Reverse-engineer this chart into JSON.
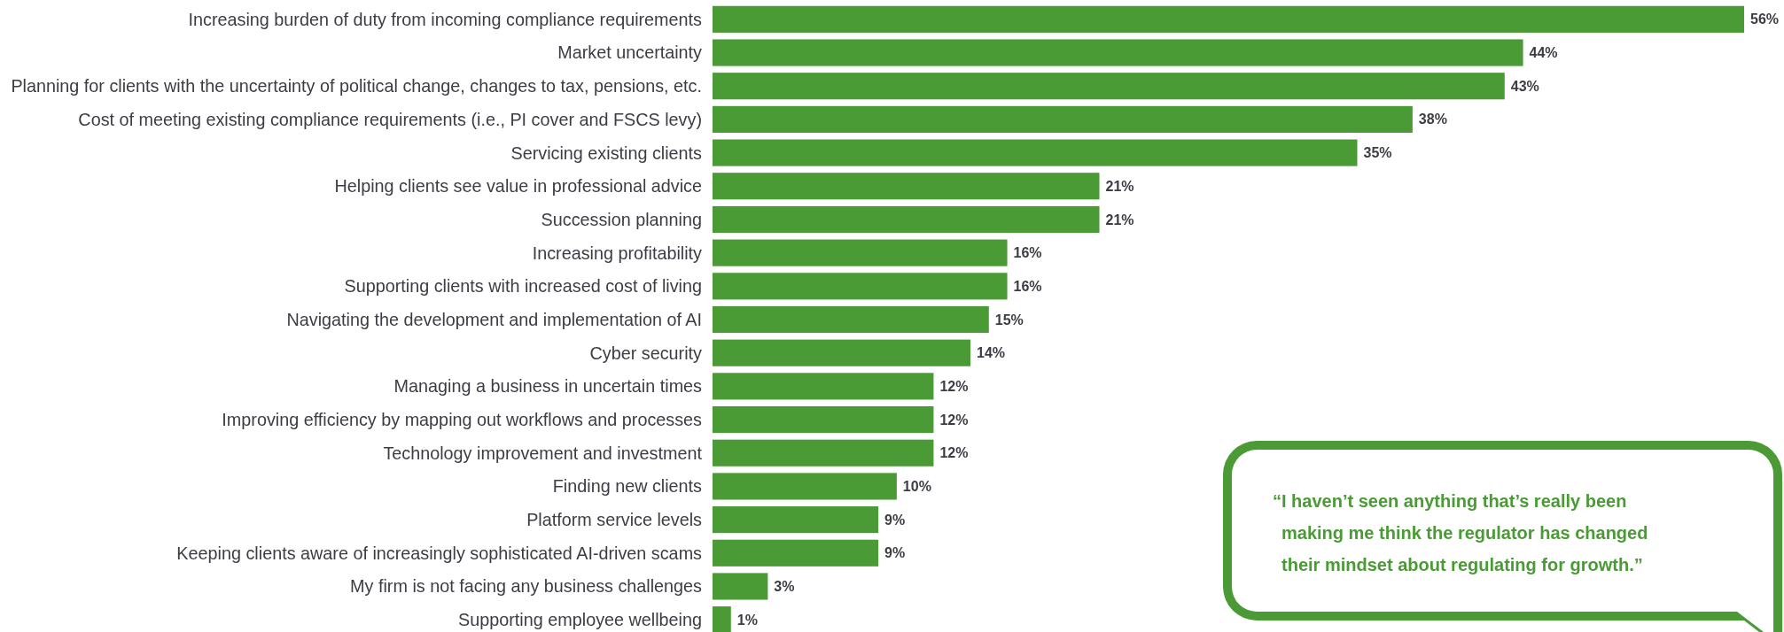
{
  "chart_data": {
    "type": "bar",
    "orientation": "horizontal",
    "data_labels": true,
    "color": "#4a9a35",
    "categories": [
      "Increasing burden of duty from incoming compliance requirements",
      "Market uncertainty",
      "Planning for clients with the uncertainty of political change, changes to tax, pensions, etc.",
      "Cost of meeting existing compliance requirements (i.e., PI cover and FSCS levy)",
      "Servicing existing clients",
      "Helping clients see value in professional advice",
      "Succession planning",
      "Increasing profitability",
      "Supporting clients with increased cost of living",
      "Navigating the development and implementation of AI",
      "Cyber security",
      "Managing a business in uncertain times",
      "Improving efficiency by mapping out workflows and processes",
      "Technology improvement and investment",
      "Finding new clients",
      "Platform service levels",
      "Keeping clients aware of increasingly sophisticated AI-driven scams",
      "My firm is not facing any business challenges",
      "Supporting employee wellbeing"
    ],
    "values": [
      56,
      44,
      43,
      38,
      35,
      21,
      21,
      16,
      16,
      15,
      14,
      12,
      12,
      12,
      10,
      9,
      9,
      3,
      1
    ],
    "value_labels": [
      "56%",
      "44%",
      "43%",
      "38%",
      "35%",
      "21%",
      "21%",
      "16%",
      "16%",
      "15%",
      "14%",
      "12%",
      "12%",
      "12%",
      "10%",
      "9%",
      "9%",
      "3%",
      "1%"
    ],
    "annotations": [
      "“I haven’t seen anything that’s really been making me think the regulator has changed their mindset about regulating for growth.”"
    ]
  }
}
